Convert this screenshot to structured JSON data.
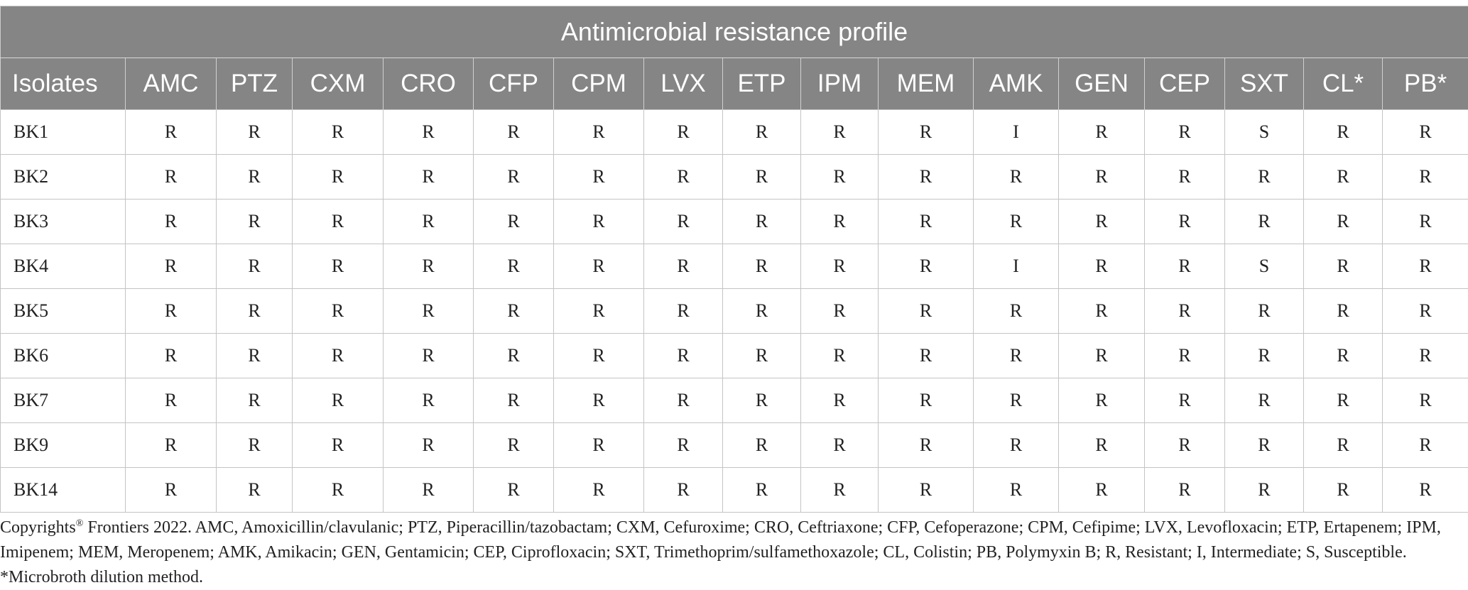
{
  "table": {
    "banner_title": "Antimicrobial resistance profile",
    "first_header": "Isolates",
    "columns": [
      "AMC",
      "PTZ",
      "CXM",
      "CRO",
      "CFP",
      "CPM",
      "LVX",
      "ETP",
      "IPM",
      "MEM",
      "AMK",
      "GEN",
      "CEP",
      "SXT",
      "CL*",
      "PB*"
    ],
    "rows": [
      {
        "isolate": "BK1",
        "values": [
          "R",
          "R",
          "R",
          "R",
          "R",
          "R",
          "R",
          "R",
          "R",
          "R",
          "I",
          "R",
          "R",
          "S",
          "R",
          "R"
        ]
      },
      {
        "isolate": "BK2",
        "values": [
          "R",
          "R",
          "R",
          "R",
          "R",
          "R",
          "R",
          "R",
          "R",
          "R",
          "R",
          "R",
          "R",
          "R",
          "R",
          "R"
        ]
      },
      {
        "isolate": "BK3",
        "values": [
          "R",
          "R",
          "R",
          "R",
          "R",
          "R",
          "R",
          "R",
          "R",
          "R",
          "R",
          "R",
          "R",
          "R",
          "R",
          "R"
        ]
      },
      {
        "isolate": "BK4",
        "values": [
          "R",
          "R",
          "R",
          "R",
          "R",
          "R",
          "R",
          "R",
          "R",
          "R",
          "I",
          "R",
          "R",
          "S",
          "R",
          "R"
        ]
      },
      {
        "isolate": "BK5",
        "values": [
          "R",
          "R",
          "R",
          "R",
          "R",
          "R",
          "R",
          "R",
          "R",
          "R",
          "R",
          "R",
          "R",
          "R",
          "R",
          "R"
        ]
      },
      {
        "isolate": "BK6",
        "values": [
          "R",
          "R",
          "R",
          "R",
          "R",
          "R",
          "R",
          "R",
          "R",
          "R",
          "R",
          "R",
          "R",
          "R",
          "R",
          "R"
        ]
      },
      {
        "isolate": "BK7",
        "values": [
          "R",
          "R",
          "R",
          "R",
          "R",
          "R",
          "R",
          "R",
          "R",
          "R",
          "R",
          "R",
          "R",
          "R",
          "R",
          "R"
        ]
      },
      {
        "isolate": "BK9",
        "values": [
          "R",
          "R",
          "R",
          "R",
          "R",
          "R",
          "R",
          "R",
          "R",
          "R",
          "R",
          "R",
          "R",
          "R",
          "R",
          "R"
        ]
      },
      {
        "isolate": "BK14",
        "values": [
          "R",
          "R",
          "R",
          "R",
          "R",
          "R",
          "R",
          "R",
          "R",
          "R",
          "R",
          "R",
          "R",
          "R",
          "R",
          "R"
        ]
      }
    ]
  },
  "footnote": {
    "prefix": "Copyrights",
    "registered": "®",
    "text": " Frontiers 2022. AMC, Amoxicillin/clavulanic; PTZ, Piperacillin/tazobactam; CXM, Cefuroxime; CRO, Ceftriaxone; CFP, Cefoperazone; CPM, Cefipime; LVX, Levofloxacin; ETP, Ertapenem; IPM, Imipenem; MEM, Meropenem; AMK, Amikacin; GEN, Gentamicin; CEP, Ciprofloxacin; SXT, Trimethoprim/sulfamethoxazole; CL, Colistin; PB, Polymyxin B; R, Resistant; I, Intermediate; S, Susceptible. *Microbroth dilution method."
  },
  "colors": {
    "header_bg": "#858585",
    "header_text": "#ffffff",
    "grid_line": "#c4c4c4"
  }
}
